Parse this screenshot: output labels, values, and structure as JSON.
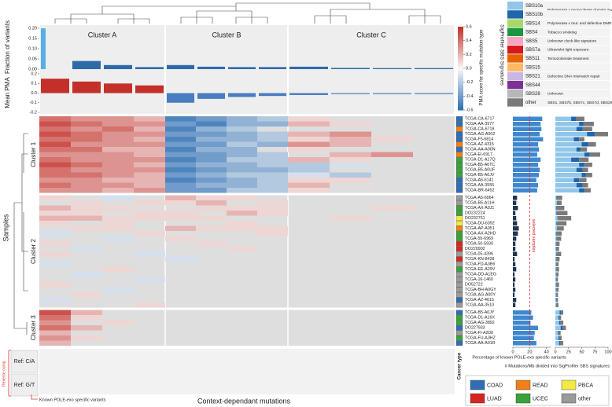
{
  "chart_data": {
    "type": "heatmap",
    "x_title": "Context-dependant mutations",
    "y_title": "Samples",
    "column_clusters": [
      "Cluster A",
      "Cluster B",
      "Cluster C"
    ],
    "row_clusters": [
      {
        "name": "Cluster 1",
        "size": 15
      },
      {
        "name": "Cluster 2",
        "size": 22
      },
      {
        "name": "Cluster 3",
        "size": 7
      }
    ],
    "colorscale": {
      "title": "PMA score for specific mutation type",
      "colors": [
        "#2c6db3",
        "#f7f7f7",
        "#c3302a"
      ],
      "lim": [
        -0.6,
        0.6
      ],
      "ticks": [
        0.6,
        0.4,
        0.2,
        {
          "value": 0,
          "label": "0.0"
        },
        -0.2,
        -0.4,
        -0.6
      ]
    },
    "fraction": {
      "title": "Fraction of variants",
      "color": "#2f6aa8",
      "highlight_color": "#5aaee6",
      "ylim": [
        0,
        0.2
      ],
      "yticks": [
        {
          "value": 0,
          "label": "0.00"
        },
        {
          "value": 0.05,
          "label": "0.05"
        },
        {
          "value": 0.1,
          "label": "0.10"
        },
        {
          "value": 0.15,
          "label": "0.15"
        },
        {
          "value": 0.2,
          "label": "0.20"
        }
      ],
      "values": [
        0.2,
        0.04,
        0.02,
        0.01,
        0.02,
        0.012,
        0.01,
        0.01,
        0.012,
        0.006,
        0.005,
        0.005
      ]
    },
    "mean_pma": {
      "title": "Mean PMA",
      "pos_color": "#c3302a",
      "neg_color": "#4a7cc0",
      "ylim": [
        -0.2,
        0.2
      ],
      "yticks": [
        0.2,
        0.1,
        {
          "value": 0,
          "label": "0.0"
        },
        -0.1,
        -0.2
      ],
      "values": [
        0.15,
        0.12,
        0.1,
        0.08,
        -0.1,
        -0.06,
        -0.04,
        -0.03,
        -0.02,
        -0.01,
        -0.01,
        -0.01
      ]
    },
    "samples": [
      "TCGA-CA-6717",
      "TCGA-AA-3977",
      "TCGA-CA-6718",
      "TCGA-AG-A002",
      "TCGA-F5-6814",
      "TCGA-AZ-4315",
      "TCGA-AA-A00N",
      "TCGA-EI-6917",
      "TCGA-D1-A17Q",
      "TCGA-B5-A0TC",
      "TCGA-B5-A0UF",
      "TCGA-B5-A0JV",
      "TCGA-A6-6141",
      "TCGA-AA-3555",
      "TCGA-BR-6452",
      "TCGA-A5-6964",
      "TCGA-B5-A11H",
      "TCGA-AX-A0J1",
      "DO232224",
      "DO232761",
      "TCGA-DU-6392",
      "TCGA-AP-A051",
      "TCGA-AX-A2HD",
      "TCGA-55-6969",
      "TCGA-50-5930",
      "DO220902",
      "TCGA-05-4396",
      "TCGA-KN-8428",
      "TCGA-FD-A3B6",
      "TCGA-EE-A29V",
      "TCGA-DD-A1EG",
      "TCGA-16-1460",
      "DO52722",
      "TCGA-BH-A0GY",
      "TCGA-AG-A00Y",
      "TCGA-AZ-4615",
      "TCGA-AA-3510",
      "TCGA-B5-A0JY",
      "TCGA-D1-A16X",
      "TCGA-AG-3892",
      "DO227933",
      "TCGA-FI-A2D0",
      "TCGA-FU-A3HZ",
      "TCGA-AA-A01R"
    ],
    "heatmap": [
      [
        0.4,
        0.3,
        0.3,
        0.2,
        -0.5,
        -0.4,
        -0.3,
        -0.2,
        0.1,
        null,
        null,
        null
      ],
      [
        0.5,
        0.4,
        0.3,
        0.3,
        -0.4,
        -0.5,
        -0.3,
        -0.3,
        0.2,
        0.1,
        null,
        null
      ],
      [
        0.4,
        0.3,
        0.4,
        0.2,
        -0.5,
        -0.3,
        -0.2,
        null,
        null,
        null,
        null,
        null
      ],
      [
        0.5,
        0.4,
        0.3,
        0.3,
        -0.4,
        -0.4,
        -0.3,
        -0.2,
        0.2,
        0.3,
        null,
        null
      ],
      [
        0.4,
        0.4,
        0.3,
        0.2,
        -0.5,
        -0.3,
        -0.3,
        -0.2,
        0.1,
        0.2,
        0.1,
        null
      ],
      [
        0.5,
        0.3,
        0.3,
        0.3,
        -0.4,
        -0.4,
        -0.2,
        -0.3,
        0.3,
        0.2,
        null,
        null
      ],
      [
        0.4,
        0.4,
        0.2,
        0.2,
        -0.5,
        -0.3,
        -0.3,
        null,
        0.1,
        null,
        null,
        null
      ],
      [
        0.3,
        0.3,
        0.3,
        0.2,
        -0.4,
        -0.4,
        -0.3,
        -0.2,
        null,
        0.2,
        0.3,
        null
      ],
      [
        0.4,
        0.3,
        0.3,
        0.3,
        -0.5,
        -0.4,
        -0.2,
        -0.2,
        0.2,
        0.1,
        null,
        null
      ],
      [
        0.5,
        0.4,
        0.3,
        0.2,
        -0.4,
        -0.3,
        -0.3,
        -0.2,
        -0.2,
        -0.1,
        null,
        null
      ],
      [
        0.4,
        0.3,
        0.3,
        0.3,
        -0.5,
        -0.4,
        -0.3,
        -0.3,
        -0.2,
        null,
        null,
        null
      ],
      [
        0.4,
        0.4,
        0.3,
        0.2,
        -0.4,
        -0.3,
        -0.2,
        -0.2,
        -0.1,
        -0.2,
        null,
        null
      ],
      [
        0.3,
        0.3,
        0.2,
        0.2,
        -0.5,
        -0.4,
        -0.3,
        -0.2,
        0.1,
        0.1,
        null,
        null
      ],
      [
        0.4,
        0.3,
        0.3,
        0.2,
        -0.4,
        -0.3,
        -0.3,
        -0.2,
        0.2,
        null,
        null,
        null
      ],
      [
        0.3,
        0.3,
        0.2,
        0.3,
        -0.4,
        -0.4,
        -0.2,
        -0.2,
        0.1,
        null,
        null,
        null
      ],
      [
        0.1,
        null,
        -0.1,
        null,
        0.2,
        0.1,
        0.1,
        null,
        null,
        null,
        null,
        null
      ],
      [
        null,
        0.1,
        null,
        0.1,
        0.1,
        0.2,
        null,
        0.1,
        null,
        null,
        null,
        null
      ],
      [
        0.2,
        0.1,
        0.1,
        null,
        null,
        0.1,
        0.1,
        0.1,
        null,
        null,
        0.1,
        null
      ],
      [
        0.1,
        0.1,
        null,
        0.1,
        0.1,
        null,
        0.2,
        0.1,
        null,
        null,
        null,
        null
      ],
      [
        0.2,
        0.2,
        0.1,
        0.1,
        0.1,
        0.1,
        null,
        null,
        null,
        0.1,
        null,
        null
      ],
      [
        0.1,
        null,
        0.1,
        null,
        null,
        null,
        0.1,
        null,
        null,
        null,
        null,
        null
      ],
      [
        null,
        0.1,
        0.1,
        null,
        0.2,
        0.1,
        0.1,
        0.1,
        null,
        null,
        null,
        null
      ],
      [
        -0.1,
        null,
        null,
        0.1,
        null,
        null,
        null,
        0.1,
        null,
        null,
        null,
        null
      ],
      [
        null,
        null,
        -0.1,
        null,
        0.1,
        null,
        null,
        null,
        null,
        null,
        null,
        null
      ],
      [
        0.1,
        null,
        null,
        null,
        null,
        0.1,
        null,
        null,
        null,
        null,
        null,
        null
      ],
      [
        null,
        -0.1,
        null,
        null,
        null,
        null,
        0.1,
        null,
        null,
        null,
        null,
        null
      ],
      [
        0.1,
        null,
        null,
        -0.1,
        null,
        null,
        null,
        null,
        null,
        null,
        null,
        null
      ],
      [
        null,
        null,
        null,
        null,
        -0.1,
        null,
        null,
        null,
        null,
        null,
        null,
        null
      ],
      [
        -0.1,
        null,
        null,
        null,
        null,
        null,
        null,
        null,
        null,
        null,
        null,
        null
      ],
      [
        null,
        null,
        0.1,
        null,
        null,
        null,
        null,
        null,
        null,
        null,
        null,
        null
      ],
      [
        null,
        -0.1,
        null,
        null,
        null,
        null,
        null,
        null,
        null,
        null,
        null,
        null
      ],
      [
        null,
        null,
        null,
        -0.1,
        null,
        null,
        null,
        null,
        null,
        null,
        null,
        null
      ],
      [
        0.1,
        null,
        null,
        null,
        null,
        null,
        null,
        null,
        null,
        null,
        null,
        null
      ],
      [
        null,
        null,
        -0.1,
        null,
        null,
        null,
        null,
        null,
        null,
        null,
        null,
        null
      ],
      [
        null,
        0.1,
        null,
        null,
        null,
        null,
        null,
        null,
        null,
        null,
        null,
        null
      ],
      [
        -0.1,
        null,
        null,
        null,
        null,
        null,
        null,
        null,
        null,
        null,
        null,
        null
      ],
      [
        null,
        null,
        null,
        0.1,
        null,
        null,
        null,
        null,
        null,
        null,
        null,
        null
      ],
      [
        0.5,
        0.2,
        null,
        null,
        null,
        null,
        null,
        null,
        null,
        null,
        null,
        null
      ],
      [
        0.4,
        0.1,
        null,
        null,
        null,
        null,
        null,
        null,
        null,
        null,
        null,
        null
      ],
      [
        0.3,
        null,
        0.1,
        null,
        null,
        null,
        null,
        null,
        null,
        null,
        null,
        null
      ],
      [
        0.4,
        0.2,
        null,
        null,
        null,
        null,
        null,
        null,
        null,
        null,
        null,
        null
      ],
      [
        0.2,
        null,
        null,
        null,
        null,
        null,
        null,
        null,
        null,
        null,
        null,
        null
      ],
      [
        0.3,
        0.1,
        null,
        null,
        null,
        null,
        null,
        null,
        null,
        null,
        null,
        null
      ],
      [
        0.2,
        null,
        null,
        null,
        null,
        null,
        null,
        null,
        null,
        null,
        null,
        null
      ]
    ],
    "cancer_types": [
      {
        "name": "COAD",
        "color": "#2f6db4"
      },
      {
        "name": "READ",
        "color": "#f07f1a"
      },
      {
        "name": "PBCA",
        "color": "#f4e842"
      },
      {
        "name": "LUAD",
        "color": "#d7261e"
      },
      {
        "name": "UCEC",
        "color": "#3aa23a"
      },
      {
        "name": "other",
        "color": "#9a9a9a"
      }
    ],
    "cancer_type_title": "Cancer type",
    "sample_cancer_type": [
      "COAD",
      "COAD",
      "READ",
      "COAD",
      "COAD",
      "READ",
      "COAD",
      "READ",
      "UCEC",
      "UCEC",
      "UCEC",
      "UCEC",
      "COAD",
      "COAD",
      "COAD",
      "other",
      "other",
      "UCEC",
      "UCEC",
      "PBCA",
      "PBCA",
      "READ",
      "UCEC",
      "UCEC",
      "LUAD",
      "LUAD",
      "other",
      "LUAD",
      "other",
      "UCEC",
      "other",
      "other",
      "other",
      "other",
      "other",
      "COAD",
      "other",
      "COAD",
      "UCEC",
      "UCEC",
      "COAD",
      "other",
      "UCEC",
      "COAD"
    ],
    "pole": {
      "title": "Percentage of known POLE-exo specific variants",
      "color": "#3f88cf",
      "low_color": "#1f3552",
      "xlim": [
        0,
        45
      ],
      "xticks": [
        0,
        20,
        40
      ],
      "threshold": 20,
      "threshold_label": "selected samples",
      "values": [
        35,
        33,
        34,
        32,
        36,
        30,
        31,
        29,
        33,
        30,
        32,
        31,
        28,
        30,
        29,
        5,
        4,
        6,
        3,
        4,
        5,
        7,
        6,
        4,
        3,
        3,
        5,
        2,
        3,
        4,
        2,
        3,
        2,
        3,
        2,
        4,
        3,
        22,
        24,
        21,
        30,
        26,
        25,
        28
      ]
    },
    "signature_title": "# Mutations/Mb divided into SigProfiler SBS signatures",
    "signature_xlim": [
      0,
      100
    ],
    "signature_xticks": [
      0,
      25,
      50,
      75,
      100
    ],
    "signature_legend_title": "SigProfiler SBS Signatures",
    "signatures": [
      {
        "name": "SBS10a",
        "color": "#8fc6ea",
        "description": "Polymerase ε exonuclease domain mutations",
        "values": [
          30,
          45,
          40,
          60,
          35,
          50,
          40,
          55,
          30,
          45,
          40,
          50,
          35,
          40,
          45,
          2,
          3,
          1,
          2,
          4,
          2,
          3,
          1,
          2,
          1,
          1,
          2,
          1,
          1,
          1,
          1,
          1,
          1,
          1,
          1,
          1,
          1,
          8,
          6,
          7,
          10,
          5,
          6,
          7
        ]
      },
      {
        "name": "SBS10b",
        "color": "#2166ac",
        "values": [
          10,
          8,
          12,
          15,
          10,
          12,
          8,
          10,
          15,
          10,
          12,
          8,
          10,
          12,
          10,
          1,
          1,
          1,
          1,
          1,
          1,
          1,
          1,
          1,
          1,
          1,
          1,
          1,
          1,
          1,
          1,
          1,
          1,
          1,
          1,
          1,
          1,
          3,
          2,
          3,
          4,
          2,
          2,
          3
        ]
      },
      {
        "name": "SBS14",
        "color": "#a6d96a",
        "description": "Polymerase ε mut. and defective DMR"
      },
      {
        "name": "SBS4",
        "color": "#1a9641",
        "description": "Tobacco smoking"
      },
      {
        "name": "SBS5",
        "color": "#f4a6c0",
        "description": "Unknown clock-like signature"
      },
      {
        "name": "SBS7a",
        "color": "#d7191c",
        "description": "Ultraviolet light exposure"
      },
      {
        "name": "SBS11",
        "color": "#e66101",
        "description": "Temozolomide treatment"
      },
      {
        "name": "SBS15",
        "color": "#fdb863"
      },
      {
        "name": "SBS21",
        "color": "#c9b6e4",
        "description": "Defective DNA mismatch repair"
      },
      {
        "name": "SBS44",
        "color": "#7b3294"
      },
      {
        "name": "SBS28",
        "color": "#b7b7b7",
        "description": "Unknown"
      },
      {
        "name": "other",
        "color": "#7a7a7a",
        "description": "SBS1, SBS7b, SBS7c, SBS7d, SBS26",
        "values": [
          15,
          20,
          18,
          25,
          10,
          15,
          12,
          20,
          18,
          15,
          10,
          12,
          14,
          10,
          12,
          10,
          8,
          15,
          20,
          25,
          18,
          12,
          10,
          8,
          6,
          5,
          8,
          6,
          4,
          5,
          4,
          3,
          5,
          4,
          3,
          3,
          4,
          4,
          3,
          5,
          6,
          3,
          4,
          5
        ]
      }
    ],
    "ref_rows": [
      "Ref: C/A",
      "Ref: G/T"
    ],
    "ref_note": "Reverse comp.",
    "known_note": "Known POLE-exo specific variants"
  }
}
